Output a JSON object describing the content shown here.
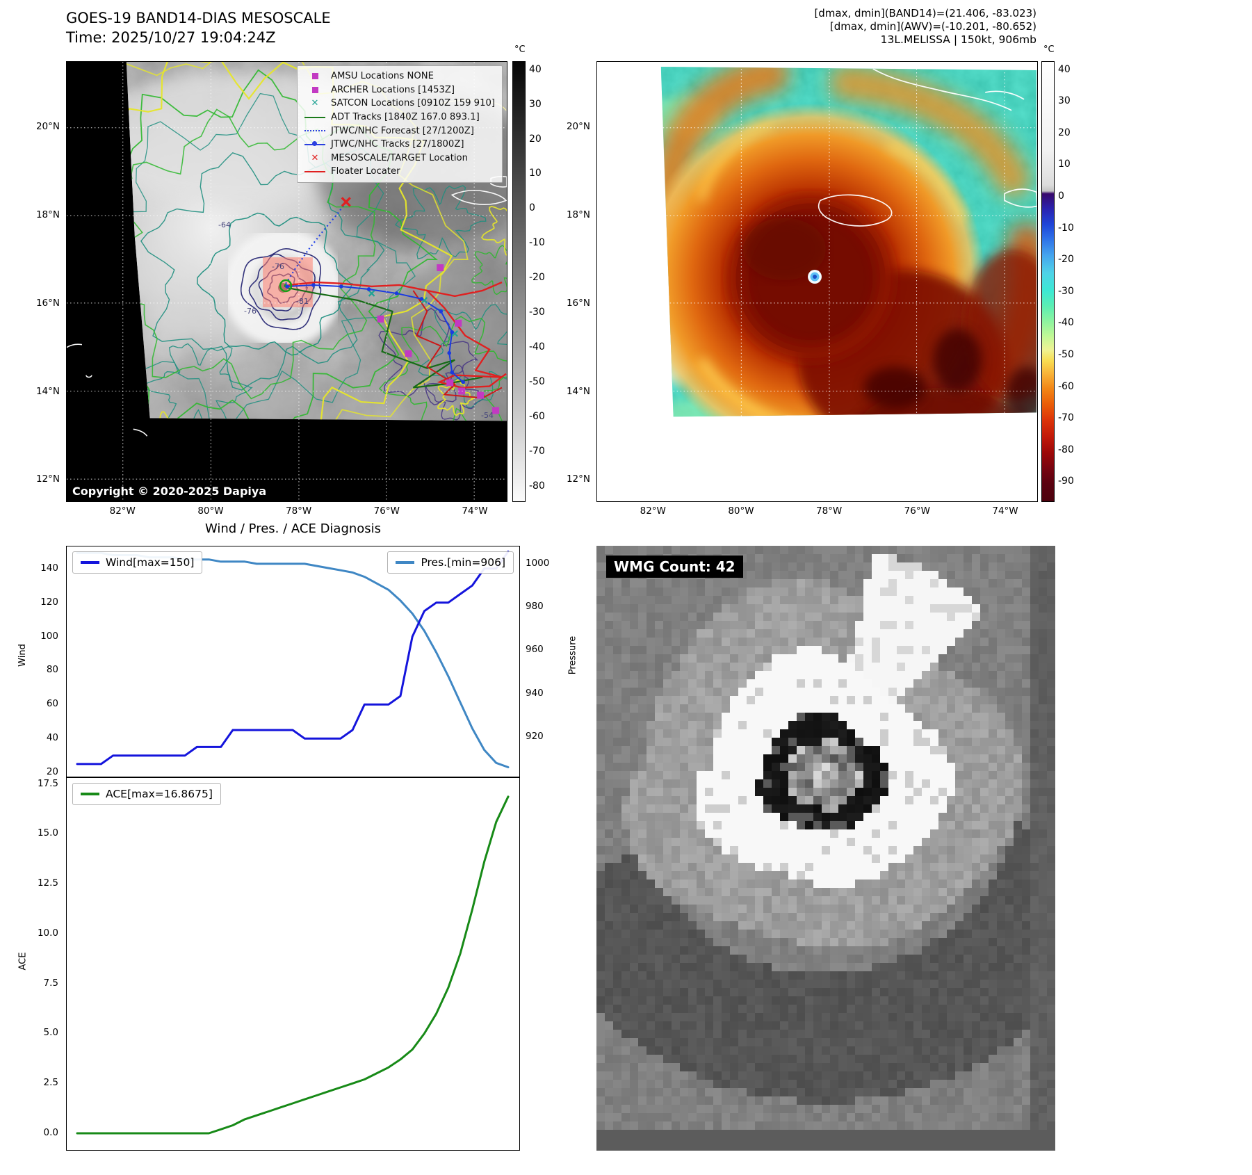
{
  "panel_band14": {
    "title": "GOES-19 BAND14-DIAS MESOSCALE",
    "time_line": "Time: 2025/10/27 19:04:24Z",
    "copyright": "Copyright © 2020-2025 Dapiya",
    "colorbar": {
      "unit": "°C",
      "ticks": [
        "40",
        "30",
        "20",
        "10",
        "0",
        "-10",
        "-20",
        "-30",
        "-40",
        "-50",
        "-60",
        "-70",
        "-80"
      ]
    },
    "lat_ticks": [
      "20°N",
      "18°N",
      "16°N",
      "14°N",
      "12°N"
    ],
    "lon_ticks": [
      "82°W",
      "80°W",
      "78°W",
      "76°W",
      "74°W"
    ],
    "contour_labels": [
      "-64",
      "-76",
      "-81",
      "-76",
      "-54"
    ],
    "legend": [
      {
        "label": "AMSU Locations NONE",
        "marker": "square",
        "color": "#c23ac2"
      },
      {
        "label": "ARCHER Locations [1453Z]",
        "marker": "square",
        "color": "#c23ac2"
      },
      {
        "label": "SATCON Locations [0910Z 159 910]",
        "marker": "x",
        "color": "#21a294"
      },
      {
        "label": "ADT Tracks [1840Z 167.0 893.1]",
        "marker": "line",
        "color": "#1a7a1a"
      },
      {
        "label": "JTWC/NHC Forecast [27/1200Z]",
        "marker": "dotted",
        "color": "#2b3fe0"
      },
      {
        "label": "JTWC/NHC Tracks [27/1800Z]",
        "marker": "line-dot",
        "color": "#2b3fe0"
      },
      {
        "label": "MESOSCALE/TARGET Location",
        "marker": "x",
        "color": "#e02020"
      },
      {
        "label": "Floater Locater",
        "marker": "line",
        "color": "#e02020"
      }
    ]
  },
  "panel_awv": {
    "header_lines": [
      "[dmax, dmin](BAND14)=(21.406, -83.023)",
      "[dmax, dmin](AWV)=(-10.201, -80.652)",
      "13L.MELISSA | 150kt, 906mb"
    ],
    "colorbar": {
      "unit": "°C",
      "ticks": [
        "40",
        "30",
        "20",
        "10",
        "0",
        "-10",
        "-20",
        "-30",
        "-40",
        "-50",
        "-60",
        "-70",
        "-80",
        "-90"
      ]
    },
    "lat_ticks": [
      "20°N",
      "18°N",
      "16°N",
      "14°N",
      "12°N"
    ],
    "lon_ticks": [
      "82°W",
      "80°W",
      "78°W",
      "76°W",
      "74°W"
    ]
  },
  "wmg": {
    "label": "WMG Count: 42"
  },
  "diagnosis_title": "Wind / Pres. / ACE Diagnosis",
  "chart_data": [
    {
      "type": "line",
      "title": "Wind / Pres. / ACE Diagnosis",
      "x_mode": "index",
      "series": [
        {
          "name": "Wind[max=150]",
          "axis": "left",
          "color": "#1414dc",
          "values": [
            25,
            25,
            25,
            30,
            30,
            30,
            30,
            30,
            30,
            30,
            35,
            35,
            35,
            45,
            45,
            45,
            45,
            45,
            45,
            40,
            40,
            40,
            40,
            45,
            60,
            60,
            60,
            65,
            100,
            115,
            120,
            120,
            125,
            130,
            140,
            140,
            150
          ]
        },
        {
          "name": "Pres.[min=906]",
          "axis": "right",
          "color": "#3f87c4",
          "values": [
            1005,
            1005,
            1005,
            1004,
            1004,
            1004,
            1003,
            1003,
            1003,
            1002,
            1002,
            1002,
            1001,
            1001,
            1001,
            1000,
            1000,
            1000,
            1000,
            1000,
            999,
            998,
            997,
            996,
            994,
            991,
            988,
            983,
            977,
            969,
            959,
            948,
            936,
            924,
            914,
            908,
            906
          ]
        }
      ],
      "left_axis": {
        "label": "Wind",
        "ticks": [
          "20",
          "40",
          "60",
          "80",
          "100",
          "120",
          "140"
        ],
        "ylim": [
          18,
          153
        ]
      },
      "right_axis": {
        "label": "Pressure",
        "ticks": [
          "920",
          "940",
          "960",
          "980",
          "1000"
        ],
        "ylim": [
          902,
          1008
        ]
      },
      "grid": false,
      "legend_positions": [
        "upper left",
        "upper right"
      ]
    },
    {
      "type": "line",
      "x_mode": "index",
      "series": [
        {
          "name": "ACE[max=16.8675]",
          "axis": "left",
          "color": "#178a17",
          "values": [
            0,
            0,
            0,
            0,
            0,
            0,
            0,
            0,
            0,
            0,
            0,
            0,
            0.2,
            0.4,
            0.7,
            0.9,
            1.1,
            1.3,
            1.5,
            1.7,
            1.9,
            2.1,
            2.3,
            2.5,
            2.7,
            3.0,
            3.3,
            3.7,
            4.2,
            5.0,
            6.0,
            7.3,
            9.0,
            11.2,
            13.6,
            15.6,
            16.8675
          ]
        }
      ],
      "left_axis": {
        "label": "ACE",
        "ticks": [
          "0.0",
          "2.5",
          "5.0",
          "7.5",
          "10.0",
          "12.5",
          "15.0",
          "17.5"
        ],
        "ylim": [
          -0.8,
          17.8
        ]
      },
      "grid": false,
      "legend_positions": [
        "upper left"
      ]
    }
  ]
}
